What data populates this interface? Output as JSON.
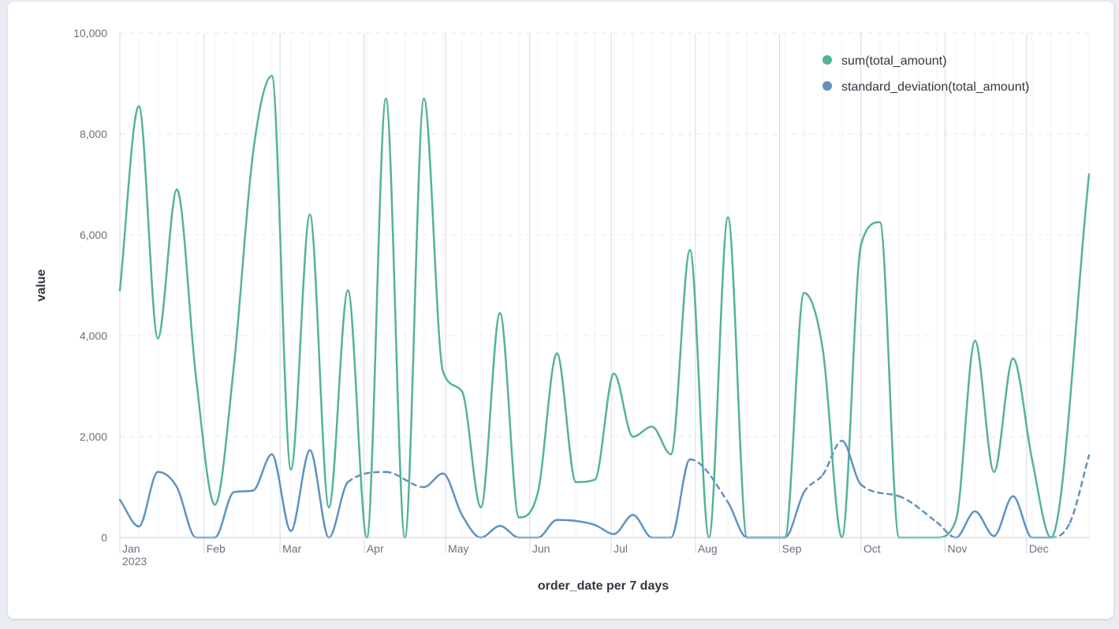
{
  "chart_data": {
    "type": "line",
    "title": "",
    "xlabel": "order_date per 7 days",
    "ylabel": "value",
    "ylim": [
      0,
      10000
    ],
    "yticks": [
      "0",
      "2,000",
      "4,000",
      "6,000",
      "8,000",
      "10,000"
    ],
    "x_range": [
      "2023-01-01",
      "2023-12-24"
    ],
    "x_ticks": [
      {
        "label": "Jan",
        "sub": "2023",
        "date": "2023-01-01"
      },
      {
        "label": "Feb",
        "sub": "",
        "date": "2023-02-01"
      },
      {
        "label": "Mar",
        "sub": "",
        "date": "2023-03-01"
      },
      {
        "label": "Apr",
        "sub": "",
        "date": "2023-04-01"
      },
      {
        "label": "May",
        "sub": "",
        "date": "2023-05-01"
      },
      {
        "label": "Jun",
        "sub": "",
        "date": "2023-06-01"
      },
      {
        "label": "Jul",
        "sub": "",
        "date": "2023-07-01"
      },
      {
        "label": "Aug",
        "sub": "",
        "date": "2023-08-01"
      },
      {
        "label": "Sep",
        "sub": "",
        "date": "2023-09-01"
      },
      {
        "label": "Oct",
        "sub": "",
        "date": "2023-10-01"
      },
      {
        "label": "Nov",
        "sub": "",
        "date": "2023-11-01"
      },
      {
        "label": "Dec",
        "sub": "",
        "date": "2023-12-01"
      }
    ],
    "grid": true,
    "legend_position": "top-right",
    "series": [
      {
        "name": "sum(total_amount)",
        "color": "#54b399",
        "points": [
          [
            "2023-01-01",
            4900
          ],
          [
            "2023-01-08",
            8550
          ],
          [
            "2023-01-15",
            3950
          ],
          [
            "2023-01-22",
            6900
          ],
          [
            "2023-01-29",
            3200
          ],
          [
            "2023-02-05",
            650
          ],
          [
            "2023-02-12",
            3400
          ],
          [
            "2023-02-19",
            7600
          ],
          [
            "2023-02-26",
            9150
          ],
          [
            "2023-03-05",
            1350
          ],
          [
            "2023-03-12",
            6400
          ],
          [
            "2023-03-19",
            600
          ],
          [
            "2023-03-26",
            4900
          ],
          [
            "2023-04-02",
            0
          ],
          [
            "2023-04-09",
            8700
          ],
          [
            "2023-04-16",
            0
          ],
          [
            "2023-04-23",
            8700
          ],
          [
            "2023-04-30",
            3300
          ],
          [
            "2023-05-07",
            2900
          ],
          [
            "2023-05-14",
            600
          ],
          [
            "2023-05-21",
            4450
          ],
          [
            "2023-05-28",
            400
          ],
          [
            "2023-06-04",
            900
          ],
          [
            "2023-06-11",
            3650
          ],
          [
            "2023-06-18",
            1100
          ],
          [
            "2023-06-25",
            1150
          ],
          [
            "2023-07-02",
            3250
          ],
          [
            "2023-07-09",
            2000
          ],
          [
            "2023-07-16",
            2200
          ],
          [
            "2023-07-23",
            1650
          ],
          [
            "2023-07-30",
            5700
          ],
          [
            "2023-08-06",
            0
          ],
          [
            "2023-08-13",
            6350
          ],
          [
            "2023-08-20",
            0
          ],
          [
            "2023-08-27",
            0
          ],
          [
            "2023-09-03",
            0
          ],
          [
            "2023-09-10",
            4850
          ],
          [
            "2023-09-17",
            3700
          ],
          [
            "2023-09-24",
            0
          ],
          [
            "2023-10-01",
            5800
          ],
          [
            "2023-10-08",
            6250
          ],
          [
            "2023-10-15",
            0
          ],
          [
            "2023-10-22",
            0
          ],
          [
            "2023-10-29",
            0
          ],
          [
            "2023-11-05",
            350
          ],
          [
            "2023-11-12",
            3900
          ],
          [
            "2023-11-19",
            1300
          ],
          [
            "2023-11-26",
            3550
          ],
          [
            "2023-12-03",
            1550
          ],
          [
            "2023-12-10",
            0
          ],
          [
            "2023-12-24",
            7200
          ]
        ],
        "dashed_segments": []
      },
      {
        "name": "standard_deviation(total_amount)",
        "color": "#6092c0",
        "points": [
          [
            "2023-01-01",
            750
          ],
          [
            "2023-01-08",
            220
          ],
          [
            "2023-01-15",
            1300
          ],
          [
            "2023-01-22",
            1000
          ],
          [
            "2023-01-29",
            0
          ],
          [
            "2023-02-05",
            0
          ],
          [
            "2023-02-12",
            900
          ],
          [
            "2023-02-19",
            930
          ],
          [
            "2023-02-26",
            1650
          ],
          [
            "2023-03-05",
            130
          ],
          [
            "2023-03-12",
            1730
          ],
          [
            "2023-03-19",
            0
          ],
          [
            "2023-03-26",
            1100
          ],
          [
            "2023-04-09",
            1300
          ],
          [
            "2023-04-23",
            1000
          ],
          [
            "2023-04-30",
            1270
          ],
          [
            "2023-05-07",
            450
          ],
          [
            "2023-05-14",
            0
          ],
          [
            "2023-05-21",
            230
          ],
          [
            "2023-05-28",
            0
          ],
          [
            "2023-06-04",
            0
          ],
          [
            "2023-06-11",
            350
          ],
          [
            "2023-06-18",
            330
          ],
          [
            "2023-06-25",
            250
          ],
          [
            "2023-07-02",
            70
          ],
          [
            "2023-07-09",
            450
          ],
          [
            "2023-07-16",
            0
          ],
          [
            "2023-07-23",
            0
          ],
          [
            "2023-07-30",
            1550
          ],
          [
            "2023-08-13",
            700
          ],
          [
            "2023-08-20",
            0
          ],
          [
            "2023-08-27",
            0
          ],
          [
            "2023-09-03",
            0
          ],
          [
            "2023-09-10",
            900
          ],
          [
            "2023-09-17",
            1250
          ],
          [
            "2023-09-24",
            1920
          ],
          [
            "2023-10-01",
            1050
          ],
          [
            "2023-10-15",
            820
          ],
          [
            "2023-10-29",
            300
          ],
          [
            "2023-11-05",
            0
          ],
          [
            "2023-11-12",
            520
          ],
          [
            "2023-11-19",
            30
          ],
          [
            "2023-11-26",
            820
          ],
          [
            "2023-12-03",
            0
          ],
          [
            "2023-12-10",
            0
          ],
          [
            "2023-12-17",
            300
          ],
          [
            "2023-12-24",
            1630
          ]
        ],
        "dashed_segments": [
          [
            12,
            13
          ],
          [
            13,
            14
          ],
          [
            28,
            29
          ],
          [
            33,
            34
          ],
          [
            34,
            35
          ],
          [
            36,
            37
          ],
          [
            37,
            38
          ],
          [
            38,
            39
          ],
          [
            44,
            45
          ],
          [
            45,
            46
          ]
        ]
      }
    ]
  }
}
